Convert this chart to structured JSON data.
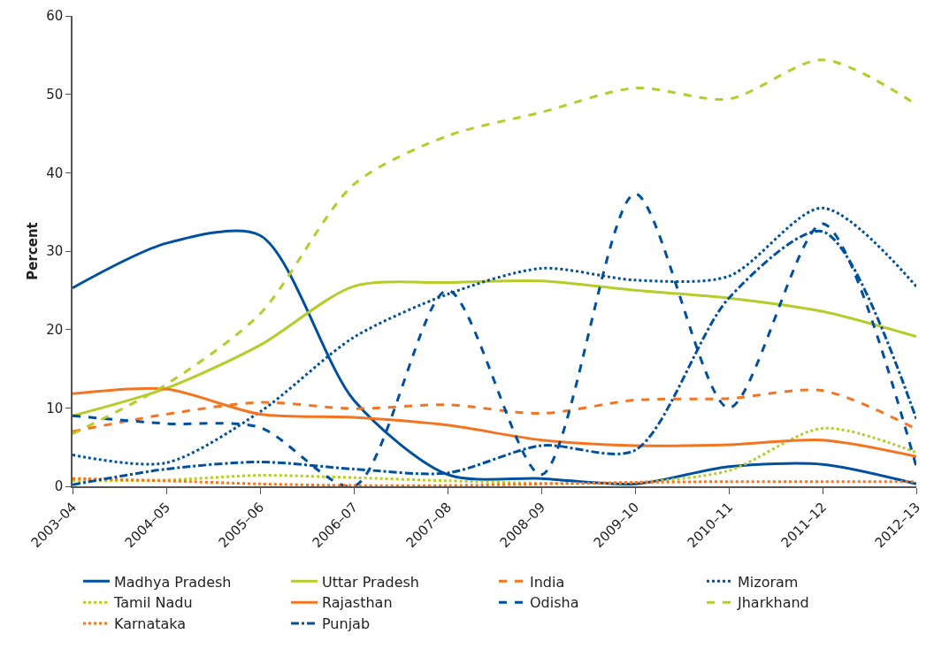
{
  "chart_data": {
    "type": "line",
    "ylabel": "Percent",
    "categories": [
      "2003–04",
      "2004–05",
      "2005–06",
      "2006–07",
      "2007–08",
      "2008–09",
      "2009–10",
      "2010–11",
      "2011–12",
      "2012–13"
    ],
    "ylim": [
      0,
      60
    ],
    "yticks": [
      0,
      10,
      20,
      30,
      40,
      50,
      60
    ],
    "grid": false,
    "legend": "bottom",
    "marker": "none",
    "series": [
      {
        "name": "Madhya Pradesh",
        "color": "#0050a0",
        "line_style": "solid",
        "values": [
          25.3,
          31,
          32,
          11,
          1.5,
          1,
          0.3,
          2.5,
          2.8,
          0.3
        ]
      },
      {
        "name": "Uttar Pradesh",
        "color": "#b5cc29",
        "line_style": "solid",
        "values": [
          9,
          12.5,
          18,
          25.5,
          26,
          26.2,
          25,
          24,
          22.3,
          19.1
        ]
      },
      {
        "name": "India",
        "color": "#f47421",
        "line_style": "dashed",
        "values": [
          7,
          9.2,
          10.7,
          9.9,
          10.4,
          9.3,
          11,
          11.2,
          12.2,
          7.3
        ]
      },
      {
        "name": "Mizoram",
        "color": "#0050a0",
        "line_style": "dotted",
        "values": [
          4,
          3,
          9.5,
          19,
          24.5,
          27.8,
          26.3,
          26.8,
          35.5,
          25.5
        ]
      },
      {
        "name": "Tamil Nadu",
        "color": "#b5cc29",
        "line_style": "dotted",
        "values": [
          0.7,
          0.8,
          1.4,
          1.1,
          0.7,
          0.4,
          0.5,
          2,
          7.4,
          4.3
        ]
      },
      {
        "name": "Rajasthan",
        "color": "#f47421",
        "line_style": "solid",
        "values": [
          11.8,
          12.4,
          9.2,
          8.8,
          7.8,
          5.9,
          5.2,
          5.3,
          5.9,
          3.8
        ]
      },
      {
        "name": "Odisha",
        "color": "#0050a0",
        "line_style": "dashed",
        "values": [
          9,
          8,
          7.5,
          0,
          25,
          1.5,
          37.3,
          10,
          33.5,
          2.5
        ]
      },
      {
        "name": "Jharkhand",
        "color": "#b5cc29",
        "line_style": "dashed",
        "values": [
          6.7,
          13,
          22,
          38.5,
          44.7,
          47.7,
          50.8,
          49.4,
          54.4,
          48.7
        ]
      },
      {
        "name": "Karnataka",
        "color": "#f47421",
        "line_style": "dotted",
        "values": [
          1,
          0.7,
          0.3,
          0.1,
          0.1,
          0.3,
          0.5,
          0.6,
          0.6,
          0.6
        ]
      },
      {
        "name": "Punjab",
        "color": "#0050a0",
        "line_style": "dashdot",
        "values": [
          0.2,
          2.2,
          3.1,
          2.2,
          1.7,
          5.2,
          4.6,
          24,
          32.5,
          8.6
        ]
      }
    ]
  }
}
